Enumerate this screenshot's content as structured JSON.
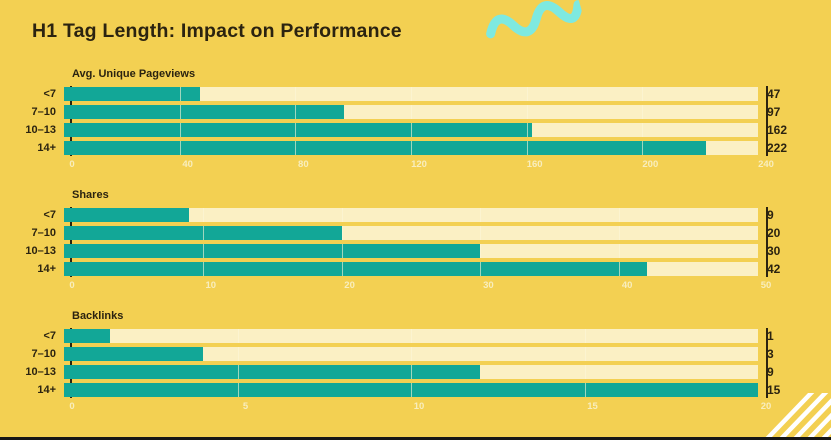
{
  "page": {
    "title": "H1 Tag Length: Impact on Performance"
  },
  "colors": {
    "background": "#F3D052",
    "bar_fill": "#12A797",
    "bar_track": "#FBF0C4",
    "text_dark": "#2B2310",
    "tick_label": "#F8EEBE",
    "squiggle": "#7EE9E0",
    "corner_stripes": "#FFFFFF",
    "bottom_bar": "#161616"
  },
  "chart_data": [
    {
      "type": "bar",
      "orientation": "horizontal",
      "title": "Avg. Unique Pageviews",
      "categories": [
        "<7",
        "7–10",
        "10–13",
        "14+"
      ],
      "values": [
        47,
        97,
        162,
        222
      ],
      "xlim": [
        0,
        240
      ],
      "ticks": [
        0,
        40,
        80,
        120,
        160,
        200,
        240
      ],
      "bar_scale_max": 240,
      "grid": true,
      "value_label_position": "right"
    },
    {
      "type": "bar",
      "orientation": "horizontal",
      "title": "Shares",
      "categories": [
        "<7",
        "7–10",
        "10–13",
        "14+"
      ],
      "values": [
        9,
        20,
        30,
        42
      ],
      "xlim": [
        0,
        50
      ],
      "ticks": [
        0,
        10,
        20,
        30,
        40,
        50
      ],
      "bar_scale_max": 50,
      "grid": true,
      "value_label_position": "right"
    },
    {
      "type": "bar",
      "orientation": "horizontal",
      "title": "Backlinks",
      "categories": [
        "<7",
        "7–10",
        "10–13",
        "14+"
      ],
      "values": [
        1,
        3,
        9,
        15
      ],
      "xlim": [
        0,
        20
      ],
      "ticks": [
        0,
        5,
        10,
        15,
        20
      ],
      "bar_scale_max": 15,
      "grid": true,
      "value_label_position": "right"
    }
  ]
}
